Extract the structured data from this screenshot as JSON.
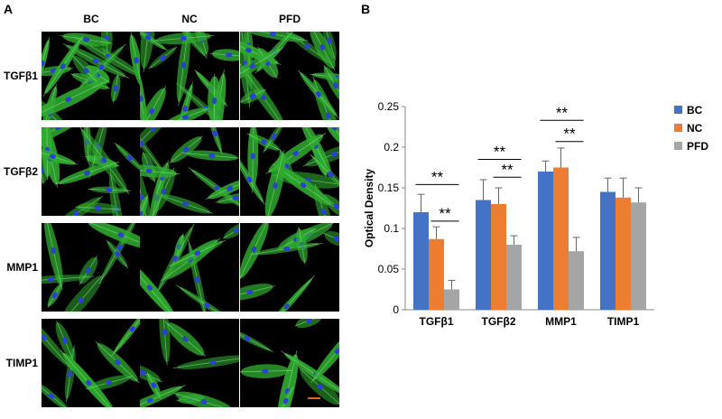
{
  "panels": {
    "a": "A",
    "b": "B"
  },
  "grid": {
    "columns": [
      "BC",
      "NC",
      "PFD"
    ],
    "rows": [
      "TGFβ1",
      "TGFβ2",
      "MMP1",
      "TIMP1"
    ],
    "colors": {
      "cytoskeleton": "#2faa2f",
      "nucleus": "#2c3fd6",
      "background": "#000000"
    }
  },
  "chart_data": {
    "type": "bar",
    "categories": [
      "TGFβ1",
      "TGFβ2",
      "MMP1",
      "TIMP1"
    ],
    "series": [
      {
        "name": "BC",
        "color": "#4472c4",
        "values": [
          0.12,
          0.135,
          0.17,
          0.145
        ],
        "errors": [
          0.022,
          0.025,
          0.013,
          0.017
        ]
      },
      {
        "name": "NC",
        "color": "#ed7d31",
        "values": [
          0.087,
          0.13,
          0.175,
          0.138
        ],
        "errors": [
          0.015,
          0.02,
          0.024,
          0.024
        ]
      },
      {
        "name": "PFD",
        "color": "#a5a5a5",
        "values": [
          0.025,
          0.08,
          0.072,
          0.132
        ],
        "errors": [
          0.011,
          0.011,
          0.017,
          0.018
        ]
      }
    ],
    "ylabel": "Optical Density",
    "ylim": [
      0,
      0.25
    ],
    "yticks": [
      "0",
      "0.05",
      "0.1",
      "0.15",
      "0.2",
      "0.25"
    ],
    "yticks_values": [
      0,
      0.05,
      0.1,
      0.15,
      0.2,
      0.25
    ],
    "legend_position": "right",
    "significance": [
      {
        "category": 0,
        "from_series": 0,
        "to_series": 2,
        "label": "**",
        "level": 0.154
      },
      {
        "category": 0,
        "from_series": 1,
        "to_series": 2,
        "label": "**",
        "level": 0.109
      },
      {
        "category": 1,
        "from_series": 0,
        "to_series": 2,
        "label": "**",
        "level": 0.185
      },
      {
        "category": 1,
        "from_series": 1,
        "to_series": 2,
        "label": "**",
        "level": 0.163
      },
      {
        "category": 2,
        "from_series": 0,
        "to_series": 2,
        "label": "**",
        "level": 0.233
      },
      {
        "category": 2,
        "from_series": 1,
        "to_series": 2,
        "label": "**",
        "level": 0.207
      }
    ]
  }
}
